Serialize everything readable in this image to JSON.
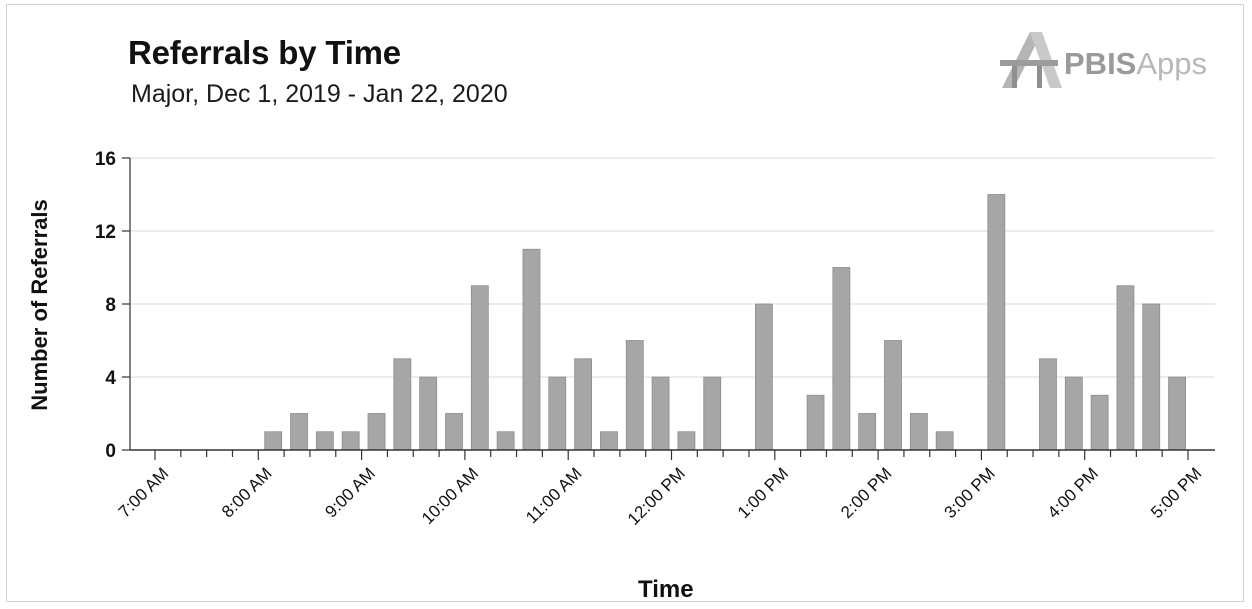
{
  "logo": {
    "brand": "PBIS",
    "suffix": "Apps"
  },
  "chart_data": {
    "type": "bar",
    "title": "Referrals by Time",
    "subtitle": "Major, Dec 1, 2019 - Jan 22, 2020",
    "xlabel": "Time",
    "ylabel": "Number of Referrals",
    "ylim": [
      0,
      16
    ],
    "yticks": [
      0,
      4,
      8,
      12,
      16
    ],
    "xticks": [
      "7:00 AM",
      "8:00 AM",
      "9:00 AM",
      "10:00 AM",
      "11:00 AM",
      "12:00 PM",
      "1:00 PM",
      "2:00 PM",
      "3:00 PM",
      "4:00 PM",
      "5:00 PM"
    ],
    "interval_minutes": 15,
    "categories": [
      "7:00 AM",
      "7:15 AM",
      "7:30 AM",
      "7:45 AM",
      "8:00 AM",
      "8:15 AM",
      "8:30 AM",
      "8:45 AM",
      "9:00 AM",
      "9:15 AM",
      "9:30 AM",
      "9:45 AM",
      "10:00 AM",
      "10:15 AM",
      "10:30 AM",
      "10:45 AM",
      "11:00 AM",
      "11:15 AM",
      "11:30 AM",
      "11:45 AM",
      "12:00 PM",
      "12:15 PM",
      "12:30 PM",
      "12:45 PM",
      "1:00 PM",
      "1:15 PM",
      "1:30 PM",
      "1:45 PM",
      "2:00 PM",
      "2:15 PM",
      "2:30 PM",
      "2:45 PM",
      "3:00 PM",
      "3:15 PM",
      "3:30 PM",
      "3:45 PM",
      "4:00 PM",
      "4:15 PM",
      "4:30 PM",
      "4:45 PM"
    ],
    "values": [
      0,
      0,
      0,
      0,
      1,
      2,
      1,
      1,
      2,
      5,
      4,
      2,
      9,
      1,
      11,
      4,
      5,
      1,
      6,
      4,
      1,
      4,
      0,
      8,
      0,
      3,
      10,
      2,
      6,
      2,
      1,
      0,
      14,
      0,
      5,
      4,
      3,
      9,
      8,
      4
    ],
    "grid": true,
    "bar_color": "#a6a6a6"
  }
}
